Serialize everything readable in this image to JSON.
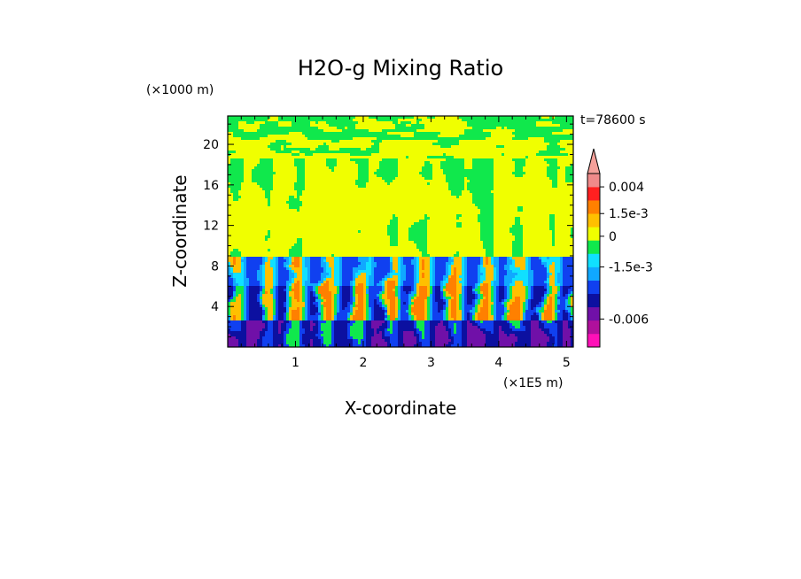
{
  "chart_data": {
    "type": "heatmap",
    "title": "H2O-g Mixing Ratio",
    "xlabel": "X-coordinate",
    "ylabel": "Z-coordinate",
    "x_unit": "(×1E5 m)",
    "y_unit": "(×1000 m)",
    "time_label": "t=78600 s",
    "xlim": [
      0,
      5.1
    ],
    "ylim": [
      0,
      22.8
    ],
    "x_ticks": [
      1,
      2,
      3,
      4,
      5
    ],
    "x_tick_labels": [
      "1",
      "2",
      "3",
      "4",
      "5"
    ],
    "y_ticks": [
      4,
      8,
      12,
      16,
      20
    ],
    "y_tick_labels": [
      "4",
      "8",
      "12",
      "16",
      "20"
    ],
    "colorbar": {
      "levels": [
        {
          "color": "#ff10b8"
        },
        {
          "color": "#b0109c"
        },
        {
          "color": "#7010a8"
        },
        {
          "color": "#0c10a0"
        },
        {
          "color": "#1040f0"
        },
        {
          "color": "#10a8ff"
        },
        {
          "color": "#10e0ff"
        },
        {
          "color": "#10e84c"
        },
        {
          "color": "#f0ff00"
        },
        {
          "color": "#ffc000"
        },
        {
          "color": "#ff8000"
        },
        {
          "color": "#ff2020"
        },
        {
          "color": "#f08a8a"
        }
      ],
      "overflow_color": "#f5a09a",
      "labels": [
        {
          "text": "0.004",
          "boundary": 12
        },
        {
          "text": "1.5e-3",
          "boundary": 10
        },
        {
          "text": "0",
          "boundary": 8.3
        },
        {
          "text": "-1.5e-3",
          "boundary": 6
        },
        {
          "text": "-0.006",
          "boundary": 2.1
        }
      ]
    },
    "field_description": {
      "upper_levels_color": "#f0ff00",
      "mid_levels_color": "#10e0ff",
      "low_levels_color": "#0c10a0",
      "surface_color": "#7010a8"
    }
  }
}
